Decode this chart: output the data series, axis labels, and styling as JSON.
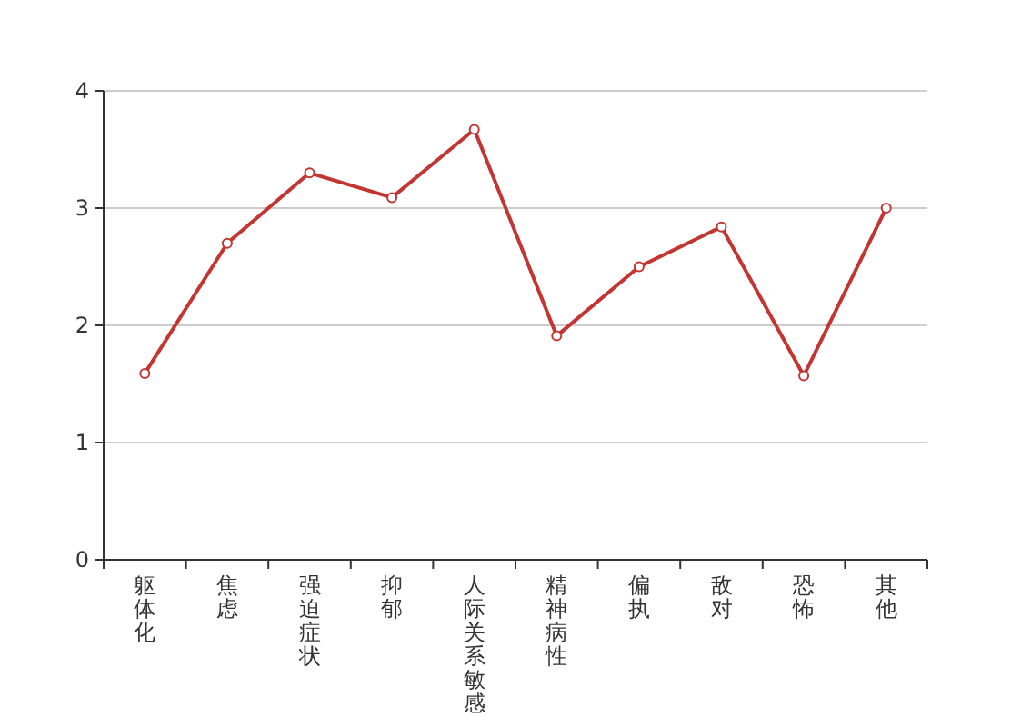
{
  "chart_data": {
    "type": "line",
    "categories": [
      "躯体化",
      "焦虑",
      "强迫症状",
      "抑郁",
      "人际关系敏感",
      "精神病性",
      "偏执",
      "敌对",
      "恐怖",
      "其他"
    ],
    "series": [
      {
        "color": "#c23531",
        "values": [
          1.59,
          2.7,
          3.3,
          3.09,
          3.67,
          1.91,
          2.5,
          2.84,
          1.57,
          3.0
        ]
      }
    ],
    "ylim": [
      0,
      4
    ],
    "yticks": [
      0,
      1,
      2,
      3,
      4
    ],
    "grid": "y",
    "marker": "circle",
    "line_style": "solid"
  }
}
